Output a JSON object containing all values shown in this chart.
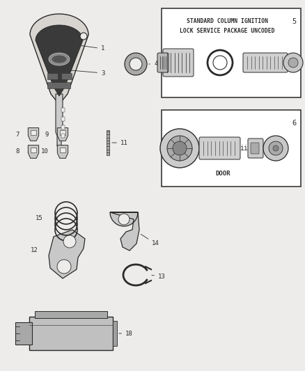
{
  "bg_color": "#edecea",
  "line_color": "#2a2a2a",
  "box1_text_line1": "STANDARD COLUMN IGNITION",
  "box1_text_line2": "LOCK SERVICE PACKAGE UNCODED",
  "box1_num": "5",
  "box2_text": "DOOR",
  "box2_num": "6",
  "font_size": 6.5,
  "fig_w": 4.38,
  "fig_h": 5.33,
  "dpi": 100
}
